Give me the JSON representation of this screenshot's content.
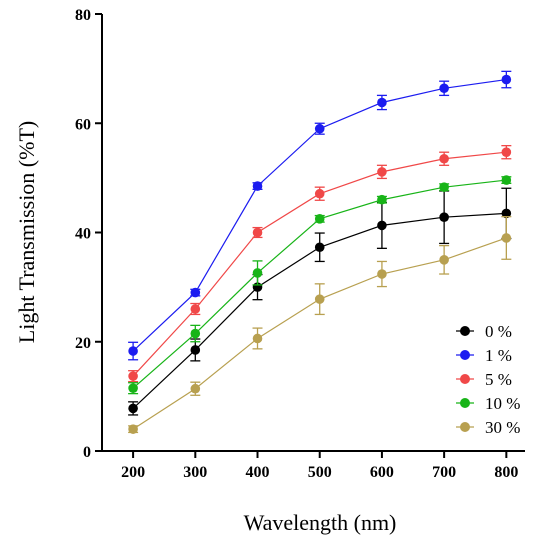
{
  "chart_data": {
    "type": "line",
    "title": "",
    "xlabel": "Wavelength (nm)",
    "ylabel": "Light Transmission (%T)",
    "x": [
      200,
      300,
      400,
      500,
      600,
      700,
      800
    ],
    "xlim": [
      150,
      830
    ],
    "ylim": [
      0,
      80
    ],
    "xticks": [
      200,
      300,
      400,
      500,
      600,
      700,
      800
    ],
    "yticks": [
      0,
      20,
      40,
      60,
      80
    ],
    "grid": false,
    "legend_position": "bottom-right",
    "series": [
      {
        "name": "0 %",
        "color": "#000000",
        "values": [
          7.8,
          18.5,
          30.0,
          37.3,
          41.3,
          42.8,
          43.5
        ],
        "errors": [
          1.2,
          2.0,
          2.3,
          2.6,
          4.2,
          4.8,
          4.6
        ]
      },
      {
        "name": "1 %",
        "color": "#1c1cf0",
        "values": [
          18.3,
          29.0,
          48.5,
          59.0,
          63.8,
          66.4,
          68.0
        ],
        "errors": [
          1.6,
          0.6,
          0.6,
          1.0,
          1.3,
          1.3,
          1.5
        ]
      },
      {
        "name": "5 %",
        "color": "#f04848",
        "values": [
          13.7,
          26.0,
          40.0,
          47.1,
          51.1,
          53.5,
          54.7
        ],
        "errors": [
          1.0,
          1.0,
          0.9,
          1.2,
          1.2,
          1.2,
          1.2
        ]
      },
      {
        "name": "10 %",
        "color": "#18b418",
        "values": [
          11.5,
          21.5,
          32.6,
          42.5,
          46.0,
          48.3,
          49.6
        ],
        "errors": [
          1.0,
          1.5,
          2.2,
          0.6,
          0.6,
          0.6,
          0.6
        ]
      },
      {
        "name": "30 %",
        "color": "#b8a050",
        "values": [
          4.0,
          11.4,
          20.6,
          27.8,
          32.4,
          35.0,
          39.0
        ],
        "errors": [
          0.6,
          1.2,
          1.9,
          2.8,
          2.3,
          2.6,
          3.9
        ]
      }
    ]
  }
}
